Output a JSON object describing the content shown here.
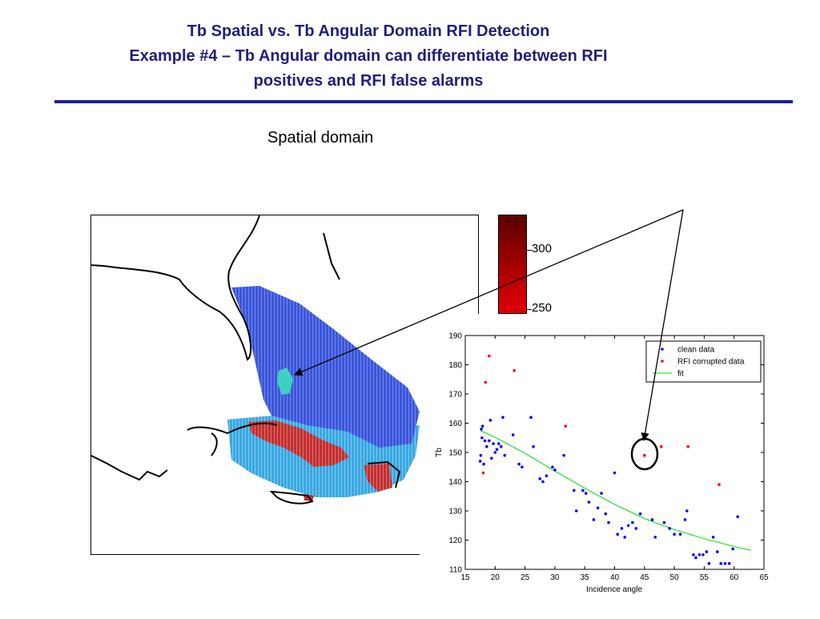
{
  "slide": {
    "title_lines": [
      "Tb Spatial vs. Tb Angular Domain RFI Detection",
      "Example #4 – Tb Angular domain can differentiate between RFI",
      "positives and RFI false alarms"
    ],
    "subtitle": "Spatial domain"
  },
  "colorbar": {
    "ticks": [
      "300",
      "250"
    ],
    "colors": [
      "#5a0000",
      "#8b0000",
      "#c00000",
      "#e00000"
    ]
  },
  "map": {
    "colors": {
      "land_outline": "#000000",
      "clean_swath": "#3c56d8",
      "coastal_swath": "#3aa8e0",
      "rfi_regions": "#c23030",
      "hotspot": "#40d0c0"
    }
  },
  "chart_data": {
    "type": "scatter",
    "xlabel": "Incidence angle",
    "ylabel": "Tb",
    "xlim": [
      15,
      65
    ],
    "ylim": [
      110,
      190
    ],
    "xticks": [
      15,
      20,
      25,
      30,
      35,
      40,
      45,
      50,
      55,
      60,
      65
    ],
    "yticks": [
      110,
      120,
      130,
      140,
      150,
      160,
      170,
      180,
      190
    ],
    "legend_position": "top-right",
    "series": [
      {
        "name": "clean data",
        "marker": "dot",
        "color": "#0000ff",
        "x": [
          17.5,
          17.6,
          17.7,
          17.8,
          17.9,
          18.1,
          18.3,
          18.6,
          19.0,
          19.2,
          19.4,
          19.7,
          20.0,
          20.3,
          20.6,
          21.0,
          21.3,
          21.6,
          23.0,
          24.0,
          24.5,
          26.0,
          26.4,
          27.5,
          28.0,
          28.6,
          29.6,
          30.0,
          31.5,
          33.2,
          33.6,
          34.7,
          35.2,
          35.7,
          36.5,
          37.2,
          37.8,
          38.5,
          39.0,
          40.0,
          40.5,
          41.2,
          41.7,
          42.3,
          43.0,
          43.6,
          44.3,
          46.3,
          46.8,
          48.3,
          49.2,
          50.0,
          51.0,
          51.8,
          52.1,
          53.2,
          53.6,
          54.2,
          54.8,
          55.4,
          55.8,
          56.5,
          57.2,
          57.8,
          58.5,
          59.2,
          59.8,
          60.6
        ],
        "y": [
          147,
          149,
          158,
          155,
          159,
          146,
          154,
          152,
          154,
          161,
          148,
          153,
          150,
          151,
          153,
          152,
          162,
          149,
          156,
          146,
          145,
          162,
          152,
          141,
          140,
          142,
          145,
          144,
          149,
          137,
          130,
          137,
          136,
          133,
          127,
          131,
          136,
          129,
          126,
          143,
          122,
          124,
          121,
          125,
          126,
          124,
          129,
          127,
          121,
          126,
          124,
          122,
          122,
          127,
          130,
          115,
          114,
          115,
          115,
          116,
          112,
          121,
          116,
          112,
          112,
          112,
          117,
          128
        ]
      },
      {
        "name": "RFI corrupted data",
        "marker": "dot",
        "color": "#ff0000",
        "x": [
          18.0,
          18.4,
          19.0,
          23.2,
          31.8,
          45.0,
          47.8,
          52.3,
          57.5
        ],
        "y": [
          143,
          174,
          183,
          178,
          159,
          149,
          152,
          152,
          139
        ]
      },
      {
        "name": "fit",
        "marker": "line",
        "color": "#00dd00",
        "x": [
          17.5,
          20,
          25,
          30,
          35,
          40,
          45,
          50,
          55,
          60,
          62.8
        ],
        "y": [
          157.5,
          155.2,
          149.7,
          143.6,
          137.8,
          132.2,
          127.4,
          123.6,
          120.5,
          117.8,
          116.5
        ]
      }
    ]
  }
}
